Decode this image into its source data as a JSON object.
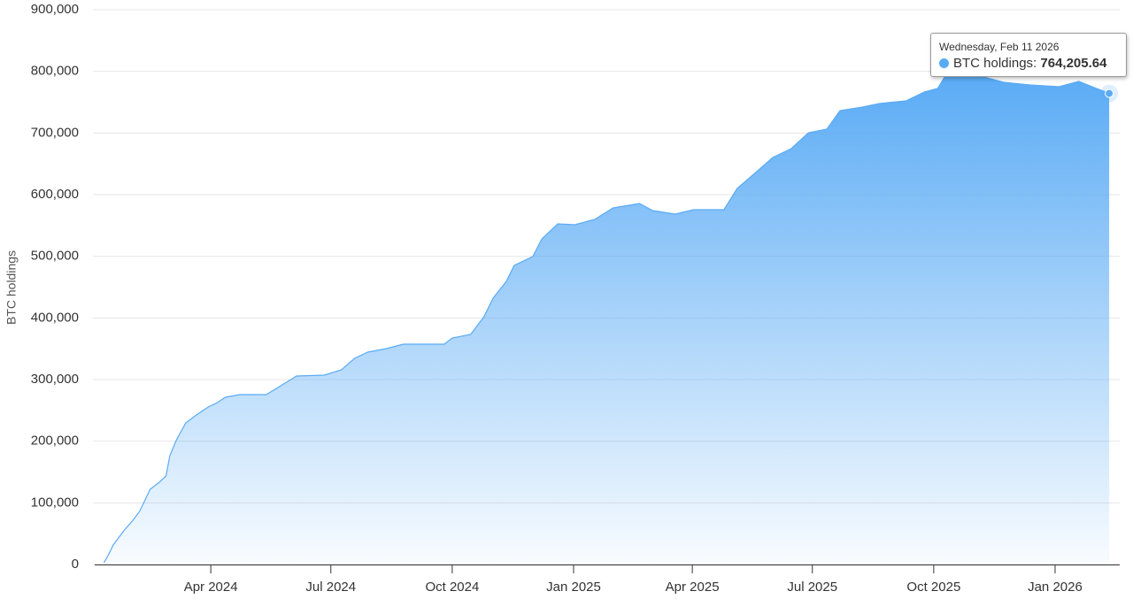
{
  "chart_data": {
    "type": "area",
    "y_label": "BTC holdings",
    "x": [
      "2024-01-11",
      "2024-01-14",
      "2024-01-18",
      "2024-01-26",
      "2024-02-02",
      "2024-02-07",
      "2024-02-15",
      "2024-02-22",
      "2024-02-27",
      "2024-03-01",
      "2024-03-06",
      "2024-03-13",
      "2024-03-21",
      "2024-03-30",
      "2024-04-06",
      "2024-04-12",
      "2024-04-23",
      "2024-05-13",
      "2024-05-23",
      "2024-06-05",
      "2024-06-26",
      "2024-07-09",
      "2024-07-19",
      "2024-07-29",
      "2024-08-12",
      "2024-08-25",
      "2024-09-25",
      "2024-10-01",
      "2024-10-15",
      "2024-10-25",
      "2024-11-01",
      "2024-11-11",
      "2024-11-17",
      "2024-12-01",
      "2024-12-08",
      "2024-12-20",
      "2025-01-02",
      "2025-01-17",
      "2025-01-31",
      "2025-02-20",
      "2025-03-02",
      "2025-03-19",
      "2025-04-02",
      "2025-04-25",
      "2025-05-05",
      "2025-05-19",
      "2025-06-01",
      "2025-06-15",
      "2025-06-28",
      "2025-07-12",
      "2025-07-22",
      "2025-08-08",
      "2025-08-21",
      "2025-09-10",
      "2025-09-24",
      "2025-10-04",
      "2025-10-10",
      "2025-11-03",
      "2025-11-23",
      "2025-12-13",
      "2026-01-04",
      "2026-01-19",
      "2026-02-05",
      "2026-02-11"
    ],
    "series": [
      {
        "name": "BTC holdings",
        "color": "#5aabf5",
        "values": [
          2900,
          14000,
          31600,
          54500,
          71800,
          86100,
          122000,
          133500,
          143500,
          176500,
          202400,
          229700,
          242600,
          255500,
          262700,
          271300,
          275600,
          275600,
          288500,
          305700,
          307200,
          315800,
          334400,
          344500,
          350200,
          357400,
          357400,
          367500,
          373200,
          401900,
          432000,
          459300,
          485200,
          499500,
          528200,
          552600,
          551200,
          559800,
          578500,
          585600,
          574200,
          568400,
          575600,
          575600,
          610000,
          635900,
          660300,
          674700,
          700500,
          706200,
          736400,
          742100,
          747800,
          752200,
          766500,
          772300,
          793800,
          793800,
          782300,
          778000,
          775100,
          783700,
          769400,
          764205.64
        ],
        "value_labels": [
          null,
          null,
          null,
          null,
          null,
          null,
          null,
          null,
          null,
          null,
          null,
          null,
          null,
          null,
          null,
          null,
          null,
          null,
          null,
          null,
          null,
          null,
          null,
          null,
          null,
          null,
          null,
          null,
          null,
          null,
          null,
          null,
          null,
          null,
          null,
          null,
          null,
          null,
          null,
          null,
          null,
          null,
          null,
          null,
          null,
          null,
          null,
          null,
          null,
          null,
          null,
          null,
          null,
          null,
          null,
          null,
          null,
          null,
          null,
          null,
          null,
          null,
          null,
          "764,205.64"
        ]
      }
    ],
    "xlim": [
      "2024-01-04",
      "2026-02-19"
    ],
    "xticks": [
      {
        "value": "2024-04-01",
        "label": "Apr 2024"
      },
      {
        "value": "2024-07-01",
        "label": "Jul 2024"
      },
      {
        "value": "2024-10-01",
        "label": "Oct 2024"
      },
      {
        "value": "2025-01-01",
        "label": "Jan 2025"
      },
      {
        "value": "2025-04-01",
        "label": "Apr 2025"
      },
      {
        "value": "2025-07-01",
        "label": "Jul 2025"
      },
      {
        "value": "2025-10-01",
        "label": "Oct 2025"
      },
      {
        "value": "2026-01-01",
        "label": "Jan 2026"
      }
    ],
    "ylim": [
      0,
      900000
    ],
    "yticks": [
      0,
      {
        "value": 100000,
        "label": "100,000"
      },
      {
        "value": 200000,
        "label": "200,000"
      },
      {
        "value": 300000,
        "label": "300,000"
      },
      {
        "value": 400000,
        "label": "400,000"
      },
      {
        "value": 500000,
        "label": "500,000"
      },
      {
        "value": 600000,
        "label": "600,000"
      },
      {
        "value": 700000,
        "label": "700,000"
      },
      {
        "value": 800000,
        "label": "800,000"
      },
      {
        "value": 900000,
        "label": "900,000"
      }
    ],
    "grid": true,
    "tooltip": {
      "date": "Wednesday, Feb 11 2026",
      "label": "BTC holdings:"
    }
  }
}
